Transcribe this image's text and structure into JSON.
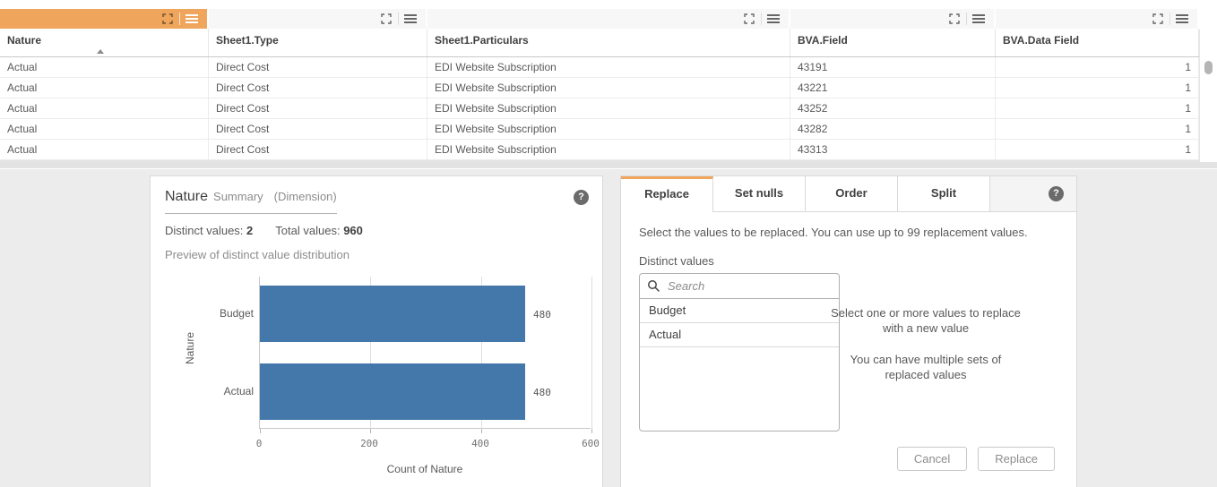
{
  "table": {
    "columns": [
      {
        "label": "Nature",
        "sorted": "asc"
      },
      {
        "label": "Sheet1.Type"
      },
      {
        "label": "Sheet1.Particulars"
      },
      {
        "label": "BVA.Field"
      },
      {
        "label": "BVA.Data Field"
      }
    ],
    "rows": [
      [
        "Actual",
        "Direct Cost",
        "EDI Website Subscription",
        "43191",
        "1"
      ],
      [
        "Actual",
        "Direct Cost",
        "EDI Website Subscription",
        "43221",
        "1"
      ],
      [
        "Actual",
        "Direct Cost",
        "EDI Website Subscription",
        "43252",
        "1"
      ],
      [
        "Actual",
        "Direct Cost",
        "EDI Website Subscription",
        "43282",
        "1"
      ],
      [
        "Actual",
        "Direct Cost",
        "EDI Website Subscription",
        "43313",
        "1"
      ]
    ]
  },
  "summary_panel": {
    "title": "Nature",
    "subtitle": "Summary",
    "type_label": "(Dimension)",
    "distinct_label": "Distinct values:",
    "distinct_value": "2",
    "total_label": "Total values:",
    "total_value": "960",
    "preview_label": "Preview of distinct value distribution"
  },
  "chart_data": {
    "type": "bar",
    "orientation": "horizontal",
    "categories": [
      "Budget",
      "Actual"
    ],
    "values": [
      480,
      480
    ],
    "value_labels": [
      "480",
      "480"
    ],
    "xlabel": "Count of Nature",
    "ylabel": "Nature",
    "xlim": [
      0,
      600
    ],
    "xticks": [
      0,
      200,
      400,
      600
    ],
    "grid": true,
    "bar_color": "#4477aa"
  },
  "replace_panel": {
    "tabs": [
      {
        "label": "Replace",
        "active": true
      },
      {
        "label": "Set nulls",
        "active": false
      },
      {
        "label": "Order",
        "active": false
      },
      {
        "label": "Split",
        "active": false
      }
    ],
    "instruction": "Select the values to be replaced. You can use up to 99 replacement values.",
    "distinct_values_label": "Distinct values",
    "search_placeholder": "Search",
    "values": [
      "Budget",
      "Actual"
    ],
    "hint_line1": "Select one or more values to replace with a new value",
    "hint_line2": "You can have multiple sets of replaced values",
    "cancel_label": "Cancel",
    "replace_label": "Replace"
  },
  "icons": {
    "help_glyph": "?"
  },
  "colors": {
    "accent_orange": "#f0a55c",
    "bar_blue": "#4477aa",
    "panel_bg": "#ffffff",
    "page_bg": "#ececec"
  }
}
